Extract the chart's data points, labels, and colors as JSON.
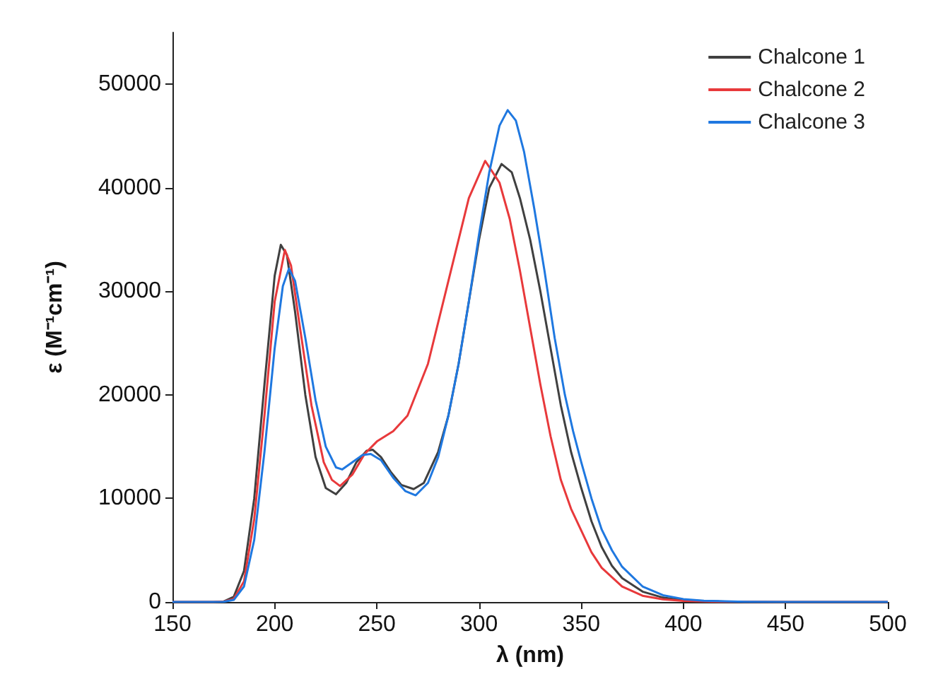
{
  "chart_data": {
    "type": "line",
    "xlabel": "λ (nm)",
    "ylabel": "ε (M⁻¹cm⁻¹)",
    "xlim": [
      150,
      500
    ],
    "xticks": [
      150,
      200,
      250,
      300,
      350,
      400,
      450,
      500
    ],
    "ylim": [
      0,
      55000
    ],
    "yticks": [
      0,
      10000,
      20000,
      30000,
      40000,
      50000
    ],
    "grid": false,
    "legend": "top right",
    "series": [
      {
        "name": "Chalcone 1",
        "color": "#404040",
        "x": [
          150,
          170,
          175,
          180,
          185,
          190,
          195,
          200,
          203,
          206,
          210,
          215,
          220,
          225,
          230,
          235,
          240,
          245,
          248,
          252,
          257,
          262,
          268,
          273,
          280,
          285,
          290,
          295,
          300,
          305,
          311,
          316,
          320,
          325,
          330,
          335,
          340,
          345,
          350,
          355,
          360,
          365,
          370,
          380,
          390,
          400,
          420,
          450,
          500
        ],
        "values": [
          0,
          0,
          50,
          500,
          3000,
          10000,
          21000,
          31500,
          34500,
          33500,
          28000,
          20000,
          14000,
          11000,
          10400,
          11500,
          13500,
          14600,
          14700,
          14000,
          12500,
          11300,
          10900,
          11500,
          14500,
          18000,
          23000,
          29000,
          35000,
          40000,
          42300,
          41500,
          39000,
          35000,
          30000,
          24500,
          19000,
          14500,
          11000,
          7800,
          5300,
          3500,
          2300,
          1000,
          420,
          160,
          30,
          0,
          0
        ]
      },
      {
        "name": "Chalcone 2",
        "color": "#e8393b",
        "x": [
          150,
          170,
          175,
          180,
          185,
          190,
          195,
          200,
          205,
          208,
          212,
          218,
          224,
          228,
          232,
          238,
          244,
          250,
          258,
          265,
          275,
          285,
          295,
          303,
          310,
          315,
          320,
          325,
          330,
          335,
          340,
          345,
          350,
          355,
          360,
          370,
          380,
          390,
          400,
          420,
          450,
          500
        ],
        "values": [
          0,
          0,
          30,
          300,
          2000,
          8000,
          18000,
          29000,
          34000,
          32500,
          27000,
          19000,
          13500,
          11800,
          11200,
          12300,
          14300,
          15500,
          16500,
          18000,
          23000,
          31000,
          39000,
          42600,
          40500,
          37000,
          32000,
          26500,
          21000,
          16000,
          11800,
          9000,
          6900,
          4800,
          3300,
          1500,
          600,
          250,
          100,
          10,
          0,
          0
        ]
      },
      {
        "name": "Chalcone 3",
        "color": "#1f78e0",
        "x": [
          150,
          170,
          175,
          180,
          185,
          190,
          195,
          200,
          204,
          207,
          210,
          215,
          220,
          225,
          230,
          233,
          238,
          243,
          247,
          252,
          258,
          264,
          269,
          275,
          280,
          285,
          290,
          295,
          300,
          305,
          310,
          314,
          318,
          322,
          327,
          332,
          337,
          342,
          346,
          350,
          355,
          360,
          365,
          370,
          380,
          390,
          400,
          410,
          430,
          450,
          500
        ],
        "values": [
          0,
          0,
          20,
          200,
          1500,
          6000,
          14500,
          24500,
          30500,
          32200,
          31000,
          25500,
          19500,
          15000,
          13000,
          12800,
          13500,
          14200,
          14300,
          13700,
          12000,
          10700,
          10300,
          11500,
          14000,
          18000,
          23000,
          29000,
          35500,
          41500,
          46000,
          47500,
          46500,
          43500,
          38000,
          32000,
          25500,
          20000,
          16500,
          13500,
          10000,
          7000,
          5000,
          3400,
          1500,
          650,
          280,
          120,
          20,
          0,
          0
        ]
      }
    ]
  }
}
